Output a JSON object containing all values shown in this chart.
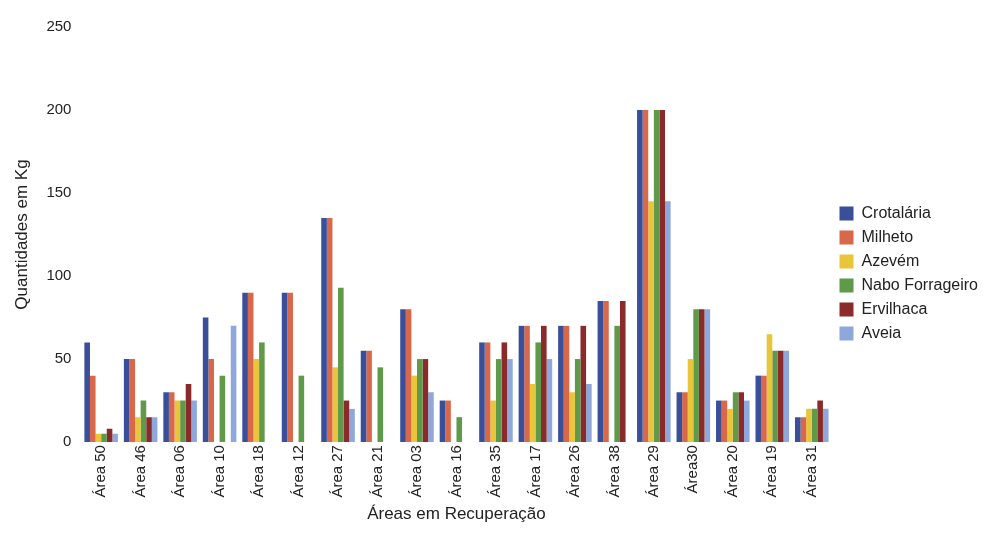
{
  "chart_data": {
    "type": "bar",
    "xlabel": "Áreas em Recuperação",
    "ylabel": "Quantidades em Kg",
    "categories": [
      "Área 50",
      "Área 46",
      "Área 06",
      "Área 10",
      "Área 18",
      "Área 12",
      "Área 27",
      "Área 21",
      "Área 03",
      "Área 16",
      "Área 35",
      "Área 17",
      "Área 26",
      "Área 38",
      "Área 29",
      "Área30",
      "Área 20",
      "Área 19",
      "Área 31"
    ],
    "series": [
      {
        "name": "Crotalária",
        "color": "#3a4f9a",
        "values": [
          60,
          50,
          30,
          75,
          90,
          90,
          135,
          55,
          80,
          25,
          60,
          70,
          70,
          85,
          200,
          30,
          25,
          40,
          15
        ]
      },
      {
        "name": "Milheto",
        "color": "#d9684a",
        "values": [
          40,
          50,
          30,
          50,
          90,
          90,
          135,
          55,
          80,
          25,
          60,
          70,
          70,
          85,
          200,
          30,
          25,
          40,
          15
        ]
      },
      {
        "name": "Azevém",
        "color": "#e8c53a",
        "values": [
          5,
          15,
          25,
          0,
          50,
          0,
          45,
          0,
          40,
          0,
          25,
          35,
          30,
          0,
          145,
          50,
          20,
          65,
          20
        ]
      },
      {
        "name": "Nabo Forrageiro",
        "color": "#5f9a4a",
        "values": [
          5,
          25,
          25,
          40,
          60,
          40,
          93,
          45,
          50,
          15,
          50,
          60,
          50,
          70,
          200,
          80,
          30,
          55,
          20
        ]
      },
      {
        "name": "Ervilhaca",
        "color": "#8b2a2a",
        "values": [
          8,
          15,
          35,
          0,
          0,
          0,
          25,
          0,
          50,
          0,
          60,
          70,
          70,
          85,
          200,
          80,
          30,
          55,
          25
        ]
      },
      {
        "name": "Aveia",
        "color": "#8fa8dc",
        "values": [
          5,
          15,
          25,
          70,
          0,
          0,
          20,
          0,
          30,
          0,
          50,
          50,
          35,
          0,
          145,
          80,
          25,
          55,
          20
        ]
      }
    ],
    "ylim": [
      0,
      250
    ],
    "yticks": [
      0,
      50,
      100,
      150,
      200,
      250
    ],
    "grid": false,
    "legend": "right"
  }
}
